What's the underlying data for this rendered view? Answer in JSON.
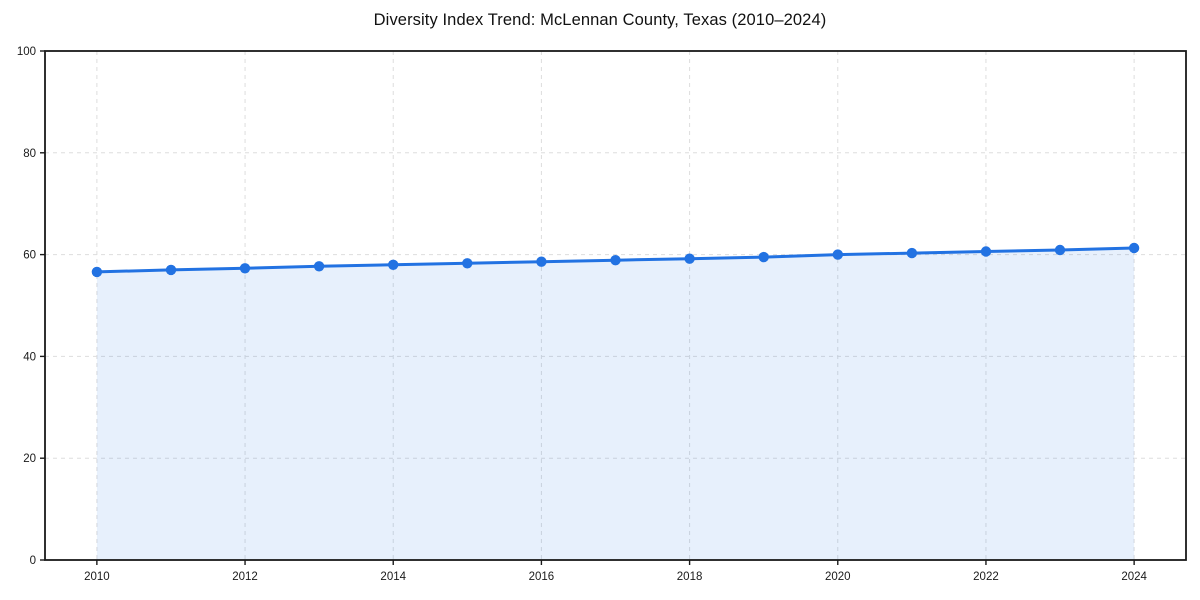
{
  "header": {
    "title": "Diversity Index Trend: McLennan County, Texas (2010–2024)"
  },
  "chart_data": {
    "type": "line",
    "title": "Diversity Index Trend: McLennan County, Texas (2010–2024)",
    "x": [
      2010,
      2011,
      2012,
      2013,
      2014,
      2015,
      2016,
      2017,
      2018,
      2019,
      2020,
      2021,
      2022,
      2023,
      2024
    ],
    "series": [
      {
        "name": "Diversity Index",
        "values": [
          56.6,
          57.0,
          57.3,
          57.7,
          58.0,
          58.3,
          58.6,
          58.9,
          59.2,
          59.5,
          60.0,
          60.3,
          60.6,
          60.9,
          61.3
        ]
      }
    ],
    "xlabel": "",
    "ylabel": "",
    "xlim": [
      2009.3,
      2024.7
    ],
    "ylim": [
      0,
      100
    ],
    "xticks": [
      2010,
      2012,
      2014,
      2016,
      2018,
      2020,
      2022,
      2024
    ],
    "yticks": [
      0,
      20,
      40,
      60,
      80,
      100
    ],
    "grid": true,
    "grid_style": "dashed",
    "legend_position": "none",
    "marker": "circle",
    "area_fill": true,
    "colors": {
      "line": "#2272e2",
      "marker": "#2272e2",
      "area": "#2272e2",
      "area_opacity": 0.11,
      "grid": "#dddddd",
      "spine": "#1a1a1a",
      "tick_label": "#1a1a1a",
      "background": "#ffffff"
    }
  }
}
